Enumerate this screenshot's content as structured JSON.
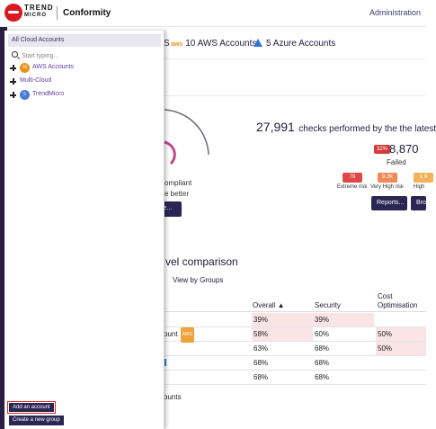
{
  "header": {
    "brand_line1": "TREND",
    "brand_line2": "MICRO",
    "product": "Conformity",
    "admin_link": "Administration"
  },
  "account_tabs": {
    "aws_partial": "S",
    "aws_tag": "aws",
    "aws_accounts": "10 AWS Accounts",
    "azure_accounts": "5 Azure Accounts"
  },
  "summary": {
    "compliant_line1": "ompliant",
    "compliant_line2": "e better",
    "save_button": "ve...",
    "checks_count": "27,991",
    "checks_text": "checks performed by the the latest",
    "failed_percent": "32%",
    "failed_count": "8,870",
    "failed_label": "Failed",
    "risks": [
      {
        "count": "78",
        "label": "Extreme risk",
        "color": "#e04848"
      },
      {
        "count": "9.2K",
        "label": "Very High risk",
        "color": "#ef8a55"
      },
      {
        "count": "1.9",
        "label": "High",
        "color": "#f2b25a"
      }
    ],
    "reports_button": "Reports...",
    "browse_button": "Bro"
  },
  "comparison": {
    "title": "vel comparison",
    "view_by_groups": "View by Groups",
    "columns": {
      "overall": "Overall",
      "security": "Security",
      "cost_line1": "Cost",
      "cost_line2": "Optimisation"
    },
    "rows": [
      {
        "name": "",
        "tag": "",
        "overall": "39%",
        "security": "39%",
        "cost": ""
      },
      {
        "name": "ount",
        "tag": "AWS",
        "overall": "58%",
        "security": "60%",
        "cost": "50%"
      },
      {
        "name": "",
        "tag": "",
        "overall": "63%",
        "security": "68%",
        "cost": "50%"
      },
      {
        "name": "",
        "tag": "",
        "overall": "68%",
        "security": "68%",
        "cost": ""
      },
      {
        "name": "",
        "tag": "",
        "overall": "68%",
        "security": "68%",
        "cost": ""
      }
    ],
    "footer": "ounts"
  },
  "sidebar": {
    "header": "All Cloud Accounts",
    "search_placeholder": "Start typing...",
    "items": [
      {
        "badge": "10",
        "label": "AWS Accounts",
        "badge_color": "#e8911c"
      },
      {
        "badge": "",
        "label": "Multi-Cloud",
        "badge_color": ""
      },
      {
        "badge": "5",
        "label": "TrendMicro",
        "badge_color": "#4c7bd9"
      }
    ],
    "add_account": "Add an account",
    "create_group": "Create a new group"
  }
}
